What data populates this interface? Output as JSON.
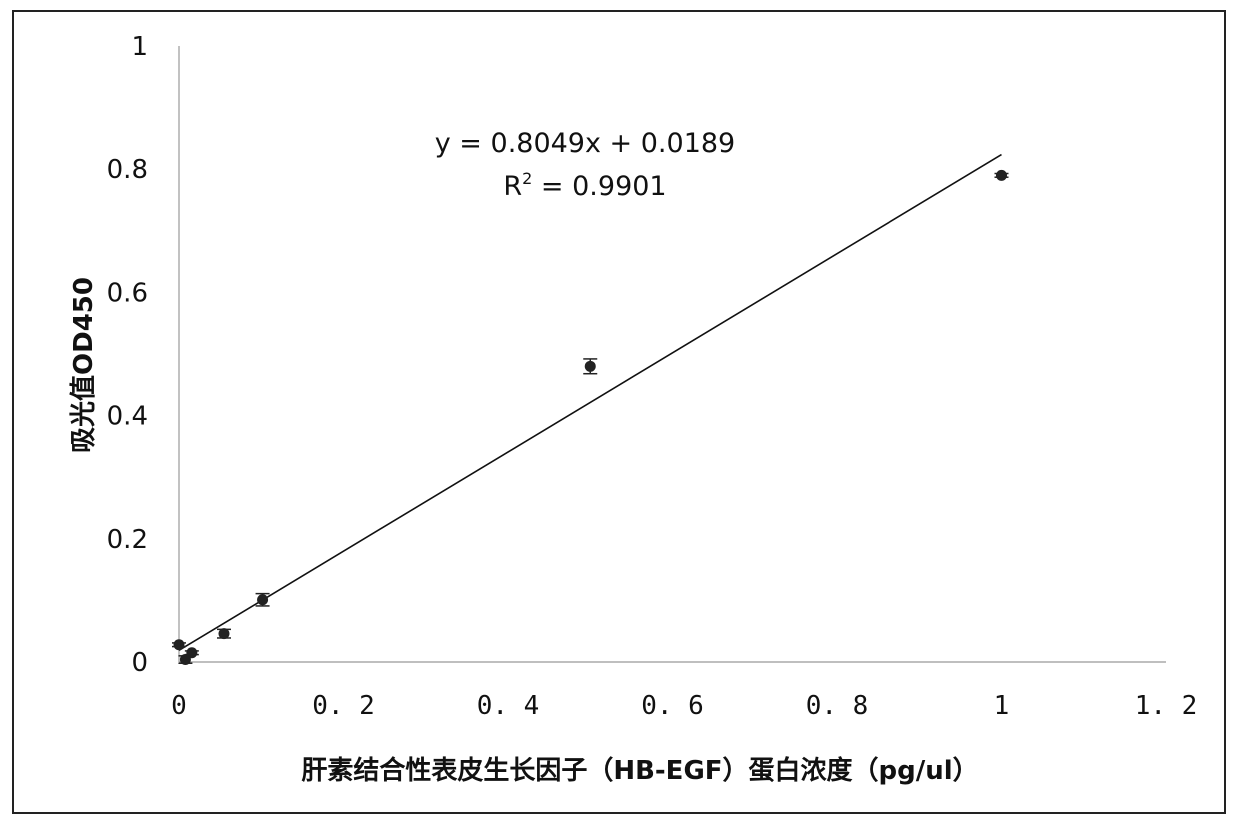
{
  "chart_data": {
    "type": "scatter",
    "xlabel": "肝素结合性表皮生长因子（HB-EGF）蛋白浓度（pg/ul）",
    "ylabel": "吸光值OD450",
    "xlim": [
      0,
      1.2
    ],
    "ylim": [
      0,
      1
    ],
    "x_ticks": [
      0,
      0.2,
      0.4,
      0.6,
      0.8,
      1,
      1.2
    ],
    "x_tick_labels": [
      "0",
      "0. 2",
      "0. 4",
      "0. 6",
      "0. 8",
      "1",
      "1. 2"
    ],
    "y_ticks": [
      0,
      0.2,
      0.4,
      0.6,
      0.8,
      1
    ],
    "y_tick_labels": [
      "0",
      "0.2",
      "0.4",
      "0.6",
      "0.8",
      "1"
    ],
    "grid": false,
    "legend": "none",
    "series": [
      {
        "points": [
          {
            "x": 0.0,
            "y": 0.028,
            "err": 0.003
          },
          {
            "x": 0.0078,
            "y": 0.004,
            "err": 0.006
          },
          {
            "x": 0.0156,
            "y": 0.015,
            "err": 0.003
          },
          {
            "x": 0.0547,
            "y": 0.046,
            "err": 0.007
          },
          {
            "x": 0.1016,
            "y": 0.101,
            "err": 0.01
          },
          {
            "x": 0.5,
            "y": 0.48,
            "err": 0.012
          },
          {
            "x": 1.0,
            "y": 0.79,
            "err": 0.003
          }
        ]
      }
    ],
    "trendline": {
      "slope": 0.8049,
      "intercept": 0.0189,
      "x_range": [
        0,
        1.0
      ],
      "equation": "y = 0.8049x + 0.0189",
      "r2_prefix": "R",
      "r2_sup": "2",
      "r2_value": " = 0.9901"
    },
    "colors": {
      "marker": "#222222",
      "line": "#111111",
      "axis": "#999999"
    }
  }
}
